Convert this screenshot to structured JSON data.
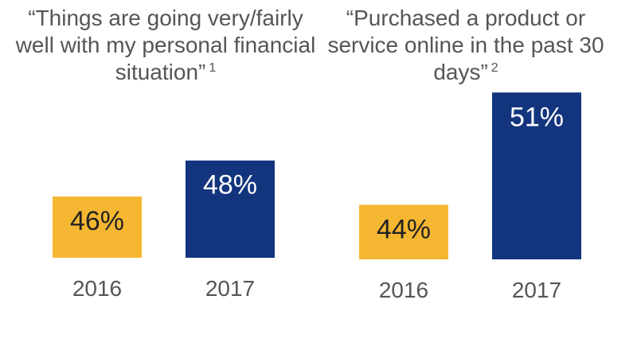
{
  "chart_data": [
    {
      "type": "bar",
      "title": "“Things are going very/fairly well with my personal financial situation”",
      "title_note": "1",
      "categories": [
        "2016",
        "2017"
      ],
      "values": [
        46,
        48
      ],
      "labels": [
        "46%",
        "48%"
      ],
      "colors": [
        "#F5B731",
        "#12357E"
      ],
      "label_colors": [
        "#222222",
        "#ffffff"
      ],
      "ylim": [
        42.6,
        53.2
      ],
      "xlabel": "",
      "ylabel": "",
      "grid": false
    },
    {
      "type": "bar",
      "title": "“Purchased a product or service online in the past 30 days”",
      "title_note": "2",
      "categories": [
        "2016",
        "2017"
      ],
      "values": [
        44,
        51
      ],
      "labels": [
        "44%",
        "51%"
      ],
      "colors": [
        "#F5B731",
        "#12357E"
      ],
      "label_colors": [
        "#222222",
        "#ffffff"
      ],
      "ylim": [
        40.6,
        52.5
      ],
      "xlabel": "",
      "ylabel": "",
      "grid": false
    }
  ]
}
